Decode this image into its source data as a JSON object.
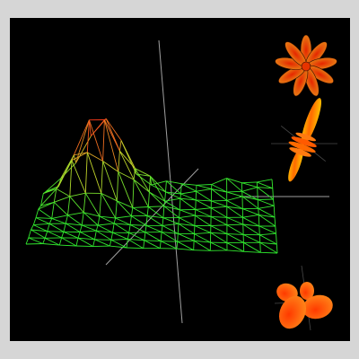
{
  "window": {
    "background_color": "#d6d6d6",
    "viewport_color": "#000000"
  },
  "scene": {
    "description_items": [
      {
        "name": "wireframe-surface",
        "gradient_colors": [
          "#2ee82e",
          "#c4d22a",
          "#ff3b1a"
        ]
      },
      {
        "name": "petal-lobe-glyph-top",
        "colors": [
          "#ff2a00",
          "#ff9a1a"
        ]
      },
      {
        "name": "spindle-lobe-glyph-middle",
        "colors": [
          "#ff3a00",
          "#ffd400"
        ]
      },
      {
        "name": "clover-lobe-glyph-bottom",
        "colors": [
          "#ff3a00",
          "#ff8a1a"
        ]
      }
    ],
    "axis_color": "#bdbdbd"
  }
}
